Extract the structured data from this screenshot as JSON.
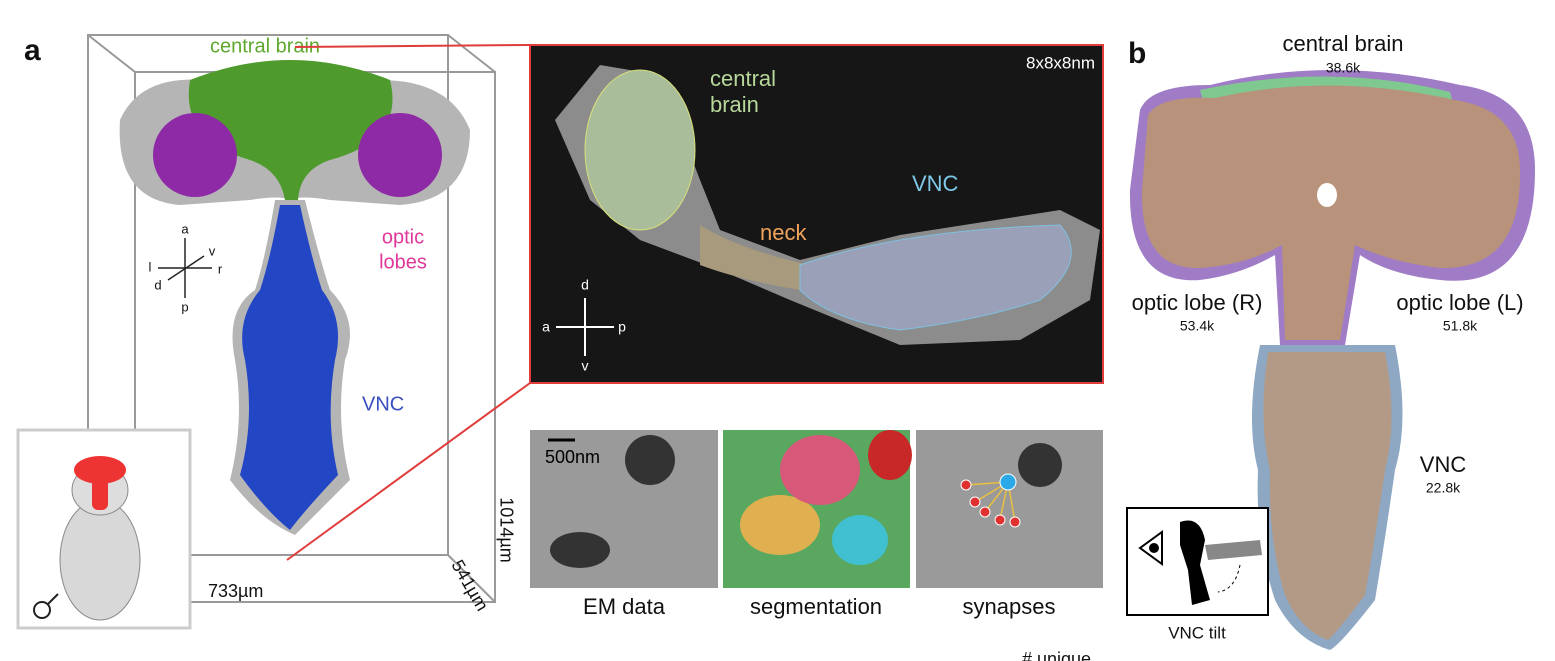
{
  "panel_a": {
    "label": "a",
    "regions": {
      "central_brain": "central brain",
      "optic_lobes": [
        "optic",
        "lobes"
      ],
      "vnc": "VNC"
    },
    "axes": {
      "a": "a",
      "p": "p",
      "l": "l",
      "r": "r",
      "v": "v",
      "d": "d"
    },
    "dimensions": {
      "width": "733µm",
      "depth": "541µm",
      "height": "1014µm"
    },
    "em_section": {
      "resolution": "8x8x8nm",
      "central_brain": [
        "central",
        "brain"
      ],
      "neck": "neck",
      "vnc": "VNC",
      "axes": {
        "d": "d",
        "a": "a",
        "p": "p",
        "v": "v"
      }
    },
    "tiles": {
      "scale_bar": "500nm",
      "captions": [
        "EM data",
        "segmentation",
        "synapses"
      ]
    }
  },
  "panel_b": {
    "label": "b",
    "regions": [
      {
        "name": "central brain",
        "count": "38.6k"
      },
      {
        "name": "optic lobe (R)",
        "count": "53.4k"
      },
      {
        "name": "optic lobe (L)",
        "count": "51.8k"
      },
      {
        "name": "VNC",
        "count": "22.8k"
      }
    ],
    "inset_caption": "VNC tilt"
  },
  "footer_text": "# unique"
}
